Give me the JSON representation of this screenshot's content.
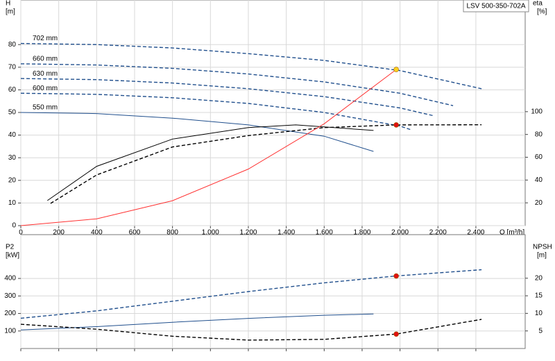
{
  "title": "LSV 500-350-702A",
  "chart_data": [
    {
      "type": "line",
      "x_label": "Q [m³/h]",
      "y_label": [
        "H",
        "[m]"
      ],
      "y2_label": [
        "eta",
        "[%]"
      ],
      "xlim": [
        0,
        2660
      ],
      "ylim": [
        0,
        99.7
      ],
      "y2lim": [
        0,
        198
      ],
      "xticks": [
        0,
        200,
        400,
        600,
        800,
        {
          "value": 1000,
          "label": "1,000"
        },
        {
          "value": 1200,
          "label": "1,200"
        },
        {
          "value": 1400,
          "label": "1,400"
        },
        {
          "value": 1600,
          "label": "1,600"
        },
        {
          "value": 1800,
          "label": "1,800"
        },
        {
          "value": 2000,
          "label": "2,000"
        },
        {
          "value": 2200,
          "label": "2,200"
        },
        {
          "value": 2400,
          "label": "2,400"
        }
      ],
      "yticks": [
        0,
        10,
        20,
        30,
        40,
        50,
        60,
        70,
        80
      ],
      "y2ticks": [
        20,
        40,
        60,
        80,
        100
      ],
      "grid": true,
      "series": [
        {
          "name": "702 mm",
          "color": "#1f4e8c",
          "dashed": true,
          "x": [
            0,
            400,
            800,
            1200,
            1600,
            2000,
            2430
          ],
          "values": [
            80.5,
            80,
            78.5,
            76,
            73,
            68.5,
            60.5
          ]
        },
        {
          "name": "660 mm",
          "color": "#1f4e8c",
          "dashed": true,
          "x": [
            0,
            400,
            800,
            1200,
            1600,
            2000,
            2280
          ],
          "values": [
            71.5,
            71,
            69.5,
            67,
            63.5,
            58.5,
            53
          ]
        },
        {
          "name": "630 mm",
          "color": "#1f4e8c",
          "dashed": true,
          "x": [
            0,
            400,
            800,
            1200,
            1600,
            2000,
            2180
          ],
          "values": [
            65,
            64.5,
            63,
            60.5,
            57,
            52,
            48.5
          ]
        },
        {
          "name": "600 mm",
          "color": "#1f4e8c",
          "dashed": true,
          "x": [
            0,
            400,
            800,
            1200,
            1600,
            2000,
            2060
          ],
          "values": [
            58.5,
            58,
            56.5,
            54,
            50,
            44,
            42.3
          ]
        },
        {
          "name": "550 mm",
          "color": "#1f4e8c",
          "dashed": false,
          "x": [
            0,
            400,
            800,
            1200,
            1600,
            1860
          ],
          "values": [
            50,
            49.5,
            47.5,
            44.5,
            39.5,
            32.8
          ]
        },
        {
          "color": "#000000",
          "dashed": true,
          "axis": "y2",
          "x": [
            157,
            400,
            800,
            1200,
            1600,
            1980,
            2430
          ],
          "values": [
            19.5,
            44.5,
            69,
            79,
            86,
            88.4,
            88.5
          ]
        },
        {
          "color": "#000000",
          "dashed": false,
          "axis": "y2",
          "x": [
            140,
            400,
            800,
            1200,
            1450,
            1860
          ],
          "values": [
            22,
            52,
            76,
            86,
            88.4,
            83.5
          ]
        },
        {
          "color": "#ff3030",
          "dashed": false,
          "x": [
            0,
            400,
            800,
            1200,
            1600,
            1980
          ],
          "values": [
            0,
            3,
            11,
            25,
            45,
            69
          ]
        }
      ],
      "points": [
        {
          "x": 1980,
          "y": 69,
          "color": "#ffd020"
        },
        {
          "x": 1980,
          "y": 88.4,
          "color": "#e01010",
          "axis": "y2"
        }
      ]
    },
    {
      "type": "line",
      "y_label": [
        "P2",
        "[kW]"
      ],
      "y2_label": [
        "NPSH",
        "[m]"
      ],
      "xlim": [
        0,
        2660
      ],
      "ylim": [
        0,
        650
      ],
      "y2lim": [
        0,
        32.4
      ],
      "xticks": [
        0,
        200,
        400,
        600,
        800,
        1000,
        1200,
        1400,
        1600,
        1800,
        2000,
        2200,
        2400
      ],
      "yticks": [
        100,
        200,
        300,
        400
      ],
      "y2ticks": [
        5,
        10,
        15,
        20
      ],
      "grid": true,
      "series": [
        {
          "color": "#1f4e8c",
          "dashed": true,
          "x": [
            0,
            400,
            800,
            1200,
            1600,
            1980,
            2430
          ],
          "values": [
            173,
            215,
            270,
            325,
            375,
            414,
            450
          ]
        },
        {
          "color": "#1f4e8c",
          "dashed": false,
          "x": [
            0,
            400,
            800,
            1200,
            1600,
            1860
          ],
          "values": [
            106,
            125,
            150,
            172,
            190,
            197
          ]
        },
        {
          "color": "#000000",
          "dashed": true,
          "axis": "y2",
          "x": [
            0,
            400,
            800,
            1200,
            1600,
            1980,
            2430
          ],
          "values": [
            6.9,
            5.5,
            3.5,
            2.4,
            2.6,
            4.1,
            8.3
          ]
        }
      ],
      "points": [
        {
          "x": 1980,
          "y": 414,
          "color": "#e01010"
        },
        {
          "x": 1980,
          "y": 4.1,
          "color": "#e01010",
          "axis": "y2"
        }
      ]
    }
  ]
}
